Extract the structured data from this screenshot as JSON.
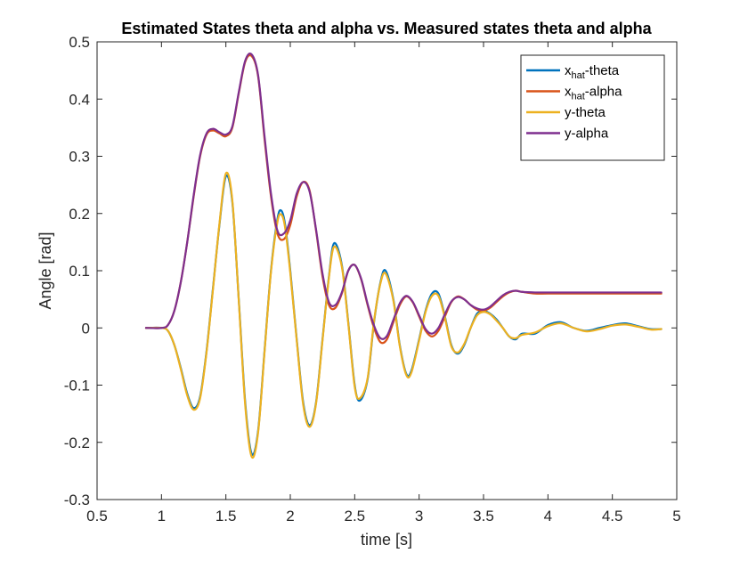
{
  "chart_data": {
    "type": "line",
    "title": "Estimated States theta and alpha vs. Measured states theta and alpha",
    "xlabel": "time [s]",
    "ylabel": "Angle [rad]",
    "xlim": [
      0.5,
      5
    ],
    "ylim": [
      -0.3,
      0.5
    ],
    "xticks": [
      0.5,
      1,
      1.5,
      2,
      2.5,
      3,
      3.5,
      4,
      4.5,
      5
    ],
    "yticks": [
      -0.3,
      -0.2,
      -0.1,
      0,
      0.1,
      0.2,
      0.3,
      0.4,
      0.5
    ],
    "xtick_labels": [
      "0.5",
      "1",
      "1.5",
      "2",
      "2.5",
      "3",
      "3.5",
      "4",
      "4.5",
      "5"
    ],
    "ytick_labels": [
      "-0.3",
      "-0.2",
      "-0.1",
      "0",
      "0.1",
      "0.2",
      "0.3",
      "0.4",
      "0.5"
    ],
    "grid": false,
    "legend_position": "top-right",
    "series": [
      {
        "name": "x_hat-theta",
        "legend_main": "x",
        "legend_sub": "hat",
        "legend_rest": "-theta",
        "color": "#0072BD",
        "x": [
          0.88,
          1.0,
          1.05,
          1.1,
          1.15,
          1.2,
          1.25,
          1.3,
          1.35,
          1.4,
          1.45,
          1.5,
          1.55,
          1.6,
          1.65,
          1.7,
          1.75,
          1.8,
          1.85,
          1.9,
          1.93,
          1.96,
          2.0,
          2.05,
          2.1,
          2.15,
          2.2,
          2.25,
          2.3,
          2.34,
          2.4,
          2.45,
          2.5,
          2.54,
          2.6,
          2.65,
          2.7,
          2.74,
          2.8,
          2.85,
          2.9,
          2.94,
          3.0,
          3.05,
          3.1,
          3.15,
          3.2,
          3.25,
          3.3,
          3.35,
          3.4,
          3.45,
          3.5,
          3.55,
          3.6,
          3.65,
          3.7,
          3.75,
          3.8,
          3.9,
          4.0,
          4.1,
          4.2,
          4.3,
          4.4,
          4.5,
          4.6,
          4.7,
          4.8,
          4.88
        ],
        "y": [
          0,
          0,
          -0.005,
          -0.03,
          -0.07,
          -0.115,
          -0.14,
          -0.12,
          -0.04,
          0.07,
          0.18,
          0.265,
          0.22,
          0.05,
          -0.13,
          -0.22,
          -0.18,
          -0.04,
          0.1,
          0.19,
          0.205,
          0.18,
          0.1,
          -0.02,
          -0.13,
          -0.17,
          -0.13,
          -0.02,
          0.09,
          0.148,
          0.11,
          0.01,
          -0.1,
          -0.127,
          -0.09,
          0.01,
          0.08,
          0.1,
          0.05,
          -0.03,
          -0.08,
          -0.075,
          -0.02,
          0.03,
          0.06,
          0.06,
          0.02,
          -0.03,
          -0.045,
          -0.03,
          0.0,
          0.025,
          0.03,
          0.025,
          0.015,
          0.0,
          -0.015,
          -0.02,
          -0.01,
          -0.01,
          0.005,
          0.01,
          0.0,
          -0.005,
          0.0,
          0.005,
          0.008,
          0.003,
          -0.002,
          -0.002
        ]
      },
      {
        "name": "x_hat-alpha",
        "legend_main": "x",
        "legend_sub": "hat",
        "legend_rest": "-alpha",
        "color": "#D95319",
        "x": [
          0.88,
          1.0,
          1.05,
          1.1,
          1.15,
          1.2,
          1.25,
          1.3,
          1.35,
          1.4,
          1.45,
          1.5,
          1.55,
          1.6,
          1.65,
          1.7,
          1.75,
          1.8,
          1.85,
          1.9,
          1.95,
          2.0,
          2.05,
          2.1,
          2.15,
          2.2,
          2.25,
          2.3,
          2.35,
          2.4,
          2.45,
          2.5,
          2.55,
          2.6,
          2.65,
          2.7,
          2.75,
          2.8,
          2.85,
          2.9,
          2.95,
          3.0,
          3.05,
          3.1,
          3.15,
          3.2,
          3.25,
          3.3,
          3.35,
          3.4,
          3.45,
          3.5,
          3.55,
          3.6,
          3.65,
          3.7,
          3.75,
          3.8,
          3.9,
          4.0,
          4.2,
          4.4,
          4.6,
          4.88
        ],
        "y": [
          0,
          0,
          0.005,
          0.03,
          0.08,
          0.15,
          0.23,
          0.3,
          0.338,
          0.345,
          0.34,
          0.335,
          0.35,
          0.41,
          0.465,
          0.475,
          0.44,
          0.33,
          0.23,
          0.165,
          0.155,
          0.18,
          0.23,
          0.255,
          0.24,
          0.17,
          0.09,
          0.04,
          0.035,
          0.06,
          0.1,
          0.11,
          0.085,
          0.04,
          0.0,
          -0.025,
          -0.02,
          0.01,
          0.04,
          0.055,
          0.045,
          0.02,
          -0.005,
          -0.015,
          -0.005,
          0.02,
          0.045,
          0.055,
          0.05,
          0.04,
          0.032,
          0.03,
          0.035,
          0.045,
          0.055,
          0.062,
          0.065,
          0.063,
          0.06,
          0.06,
          0.06,
          0.06,
          0.06,
          0.06
        ]
      },
      {
        "name": "y-theta",
        "legend_main": "y-theta",
        "legend_sub": "",
        "legend_rest": "",
        "color": "#EDB120",
        "x": [
          0.88,
          1.0,
          1.05,
          1.1,
          1.15,
          1.2,
          1.25,
          1.3,
          1.35,
          1.4,
          1.45,
          1.5,
          1.55,
          1.6,
          1.65,
          1.7,
          1.75,
          1.8,
          1.85,
          1.9,
          1.93,
          1.96,
          2.0,
          2.05,
          2.1,
          2.15,
          2.2,
          2.25,
          2.3,
          2.34,
          2.4,
          2.45,
          2.5,
          2.54,
          2.6,
          2.65,
          2.7,
          2.74,
          2.8,
          2.85,
          2.9,
          2.94,
          3.0,
          3.05,
          3.1,
          3.15,
          3.2,
          3.25,
          3.3,
          3.35,
          3.4,
          3.45,
          3.5,
          3.55,
          3.6,
          3.65,
          3.7,
          3.75,
          3.8,
          3.9,
          4.0,
          4.1,
          4.2,
          4.3,
          4.4,
          4.5,
          4.6,
          4.7,
          4.8,
          4.88
        ],
        "y": [
          0,
          0,
          -0.005,
          -0.03,
          -0.072,
          -0.118,
          -0.143,
          -0.123,
          -0.042,
          0.068,
          0.182,
          0.27,
          0.223,
          0.048,
          -0.135,
          -0.225,
          -0.183,
          -0.042,
          0.098,
          0.185,
          0.198,
          0.175,
          0.096,
          -0.022,
          -0.134,
          -0.173,
          -0.132,
          -0.022,
          0.088,
          0.142,
          0.107,
          0.008,
          -0.103,
          -0.123,
          -0.088,
          0.012,
          0.078,
          0.095,
          0.048,
          -0.032,
          -0.082,
          -0.078,
          -0.022,
          0.028,
          0.056,
          0.056,
          0.018,
          -0.032,
          -0.043,
          -0.028,
          0.0,
          0.022,
          0.028,
          0.024,
          0.013,
          0.0,
          -0.015,
          -0.018,
          -0.012,
          -0.008,
          0.003,
          0.008,
          0.0,
          -0.006,
          -0.002,
          0.004,
          0.006,
          0.002,
          -0.003,
          -0.002
        ]
      },
      {
        "name": "y-alpha",
        "legend_main": "y-alpha",
        "legend_sub": "",
        "legend_rest": "",
        "color": "#7E2F8E",
        "x": [
          0.88,
          1.0,
          1.05,
          1.1,
          1.15,
          1.2,
          1.25,
          1.3,
          1.35,
          1.4,
          1.45,
          1.5,
          1.55,
          1.6,
          1.65,
          1.7,
          1.75,
          1.8,
          1.85,
          1.9,
          1.95,
          2.0,
          2.05,
          2.1,
          2.15,
          2.2,
          2.25,
          2.3,
          2.35,
          2.4,
          2.45,
          2.5,
          2.55,
          2.6,
          2.65,
          2.7,
          2.75,
          2.8,
          2.85,
          2.9,
          2.95,
          3.0,
          3.05,
          3.1,
          3.15,
          3.2,
          3.25,
          3.3,
          3.35,
          3.4,
          3.45,
          3.5,
          3.55,
          3.6,
          3.65,
          3.7,
          3.75,
          3.8,
          3.9,
          4.0,
          4.2,
          4.4,
          4.6,
          4.88
        ],
        "y": [
          0,
          0,
          0.005,
          0.03,
          0.08,
          0.15,
          0.232,
          0.302,
          0.34,
          0.348,
          0.342,
          0.338,
          0.352,
          0.412,
          0.467,
          0.478,
          0.442,
          0.335,
          0.235,
          0.17,
          0.165,
          0.188,
          0.235,
          0.255,
          0.238,
          0.172,
          0.095,
          0.045,
          0.04,
          0.062,
          0.1,
          0.11,
          0.086,
          0.042,
          0.004,
          -0.018,
          -0.014,
          0.014,
          0.043,
          0.056,
          0.046,
          0.022,
          -0.002,
          -0.01,
          0.0,
          0.024,
          0.046,
          0.054,
          0.05,
          0.04,
          0.034,
          0.032,
          0.037,
          0.047,
          0.057,
          0.063,
          0.065,
          0.063,
          0.062,
          0.062,
          0.062,
          0.062,
          0.062,
          0.062
        ]
      }
    ]
  }
}
